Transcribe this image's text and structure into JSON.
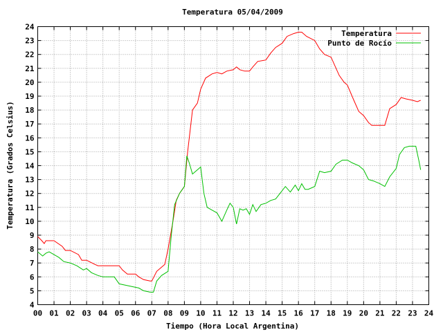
{
  "chart_data": {
    "type": "line",
    "title": "Temperatura 05/04/2009",
    "xlabel": "Tiempo (Hora Local Argentina)",
    "ylabel": "Temperatura (Grados Celsius)",
    "xlim": [
      0,
      24
    ],
    "ylim": [
      4,
      24
    ],
    "xticks": [
      "00",
      "01",
      "02",
      "03",
      "04",
      "05",
      "06",
      "07",
      "08",
      "09",
      "10",
      "11",
      "12",
      "13",
      "14",
      "15",
      "16",
      "17",
      "18",
      "19",
      "20",
      "21",
      "22",
      "23",
      "24"
    ],
    "yticks": [
      "4",
      "5",
      "6",
      "7",
      "8",
      "9",
      "10",
      "11",
      "12",
      "13",
      "14",
      "15",
      "16",
      "17",
      "18",
      "19",
      "20",
      "21",
      "22",
      "23",
      "24"
    ],
    "grid": true,
    "legend_position": "top-right",
    "series": [
      {
        "name": "Temperatura",
        "color": "#ff0000",
        "x": [
          0.0,
          0.25,
          0.4,
          0.5,
          1.0,
          1.5,
          1.7,
          2.0,
          2.5,
          2.7,
          3.0,
          3.5,
          3.7,
          4.0,
          4.5,
          5.0,
          5.2,
          5.5,
          6.0,
          6.2,
          6.5,
          6.9,
          7.0,
          7.3,
          7.5,
          7.8,
          8.0,
          8.3,
          8.5,
          8.7,
          9.0,
          9.2,
          9.5,
          9.8,
          10.0,
          10.3,
          10.7,
          11.0,
          11.3,
          11.6,
          12.0,
          12.2,
          12.4,
          12.7,
          13.0,
          13.2,
          13.5,
          14.0,
          14.3,
          14.6,
          15.0,
          15.3,
          15.7,
          16.0,
          16.2,
          16.5,
          17.0,
          17.3,
          17.6,
          18.0,
          18.5,
          18.8,
          19.0,
          19.4,
          19.7,
          20.0,
          20.3,
          20.5,
          21.0,
          21.3,
          21.6,
          22.0,
          22.3,
          22.6,
          23.0,
          23.3,
          23.5
        ],
        "y": [
          8.9,
          8.6,
          8.4,
          8.6,
          8.6,
          8.2,
          7.9,
          7.9,
          7.6,
          7.2,
          7.2,
          6.9,
          6.8,
          6.8,
          6.8,
          6.8,
          6.5,
          6.2,
          6.2,
          6.0,
          5.8,
          5.7,
          5.7,
          6.4,
          6.6,
          6.9,
          8.0,
          10.0,
          11.5,
          12.0,
          12.5,
          15.0,
          18.0,
          18.5,
          19.5,
          20.3,
          20.6,
          20.7,
          20.6,
          20.8,
          20.9,
          21.1,
          20.9,
          20.8,
          20.8,
          21.1,
          21.5,
          21.6,
          22.1,
          22.5,
          22.8,
          23.3,
          23.5,
          23.6,
          23.6,
          23.3,
          23.0,
          22.4,
          22.0,
          21.8,
          20.5,
          20.0,
          19.8,
          18.7,
          17.9,
          17.6,
          17.1,
          16.9,
          16.9,
          16.9,
          18.1,
          18.4,
          18.9,
          18.8,
          18.7,
          18.6,
          18.7
        ]
      },
      {
        "name": "Punto de Rocío",
        "color": "#00c000",
        "x": [
          0.0,
          0.3,
          0.5,
          0.7,
          1.0,
          1.3,
          1.6,
          2.0,
          2.4,
          2.8,
          3.0,
          3.3,
          3.7,
          4.0,
          4.3,
          4.7,
          5.0,
          5.4,
          5.8,
          6.2,
          6.5,
          6.9,
          7.1,
          7.3,
          7.6,
          8.0,
          8.2,
          8.4,
          8.7,
          9.0,
          9.15,
          9.3,
          9.5,
          9.8,
          10.0,
          10.2,
          10.4,
          10.7,
          11.0,
          11.3,
          11.6,
          11.8,
          12.0,
          12.2,
          12.4,
          12.6,
          12.8,
          13.0,
          13.2,
          13.4,
          13.7,
          14.0,
          14.3,
          14.6,
          15.0,
          15.2,
          15.5,
          15.8,
          16.0,
          16.2,
          16.4,
          16.6,
          17.0,
          17.3,
          17.6,
          18.0,
          18.3,
          18.7,
          19.0,
          19.3,
          19.7,
          20.0,
          20.3,
          20.6,
          21.0,
          21.3,
          21.6,
          22.0,
          22.2,
          22.5,
          22.8,
          23.0,
          23.2,
          23.4,
          23.5
        ],
        "y": [
          7.8,
          7.5,
          7.7,
          7.8,
          7.6,
          7.4,
          7.1,
          7.0,
          6.8,
          6.5,
          6.6,
          6.3,
          6.1,
          6.0,
          6.0,
          6.0,
          5.5,
          5.4,
          5.3,
          5.2,
          5.0,
          4.9,
          4.9,
          5.7,
          6.1,
          6.4,
          9.0,
          11.2,
          12.0,
          12.5,
          14.7,
          14.2,
          13.4,
          13.7,
          13.9,
          12.0,
          11.0,
          10.8,
          10.6,
          10.0,
          10.8,
          11.3,
          11.0,
          9.8,
          10.9,
          10.8,
          10.9,
          10.5,
          11.2,
          10.7,
          11.2,
          11.3,
          11.5,
          11.6,
          12.2,
          12.5,
          12.1,
          12.6,
          12.2,
          12.7,
          12.3,
          12.3,
          12.5,
          13.6,
          13.5,
          13.6,
          14.1,
          14.4,
          14.4,
          14.2,
          14.0,
          13.7,
          13.0,
          12.9,
          12.7,
          12.5,
          13.2,
          13.8,
          14.8,
          15.3,
          15.4,
          15.4,
          15.4,
          14.3,
          13.7
        ]
      }
    ]
  }
}
